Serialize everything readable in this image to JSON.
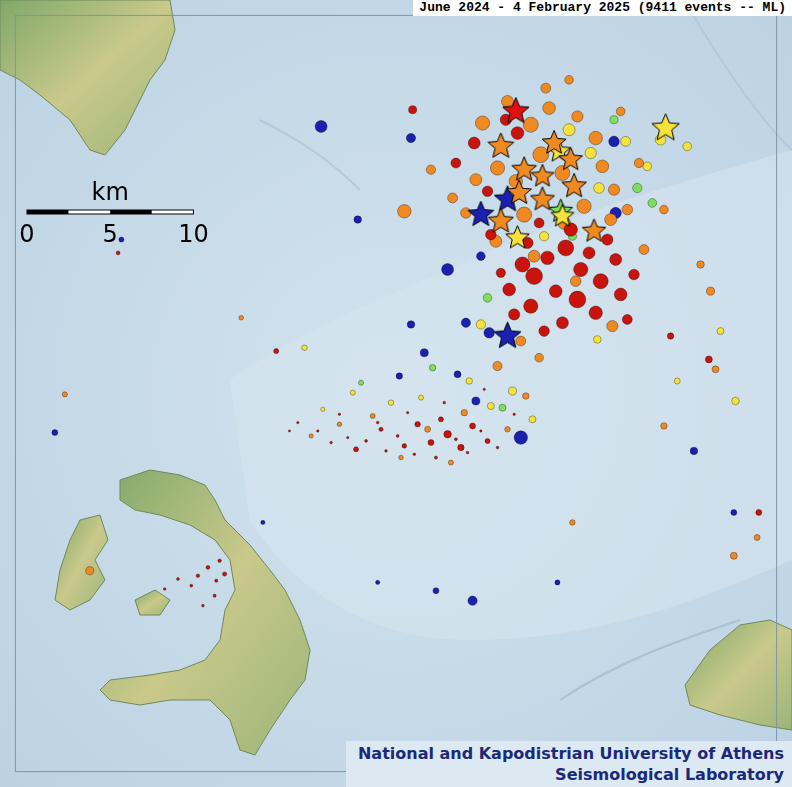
{
  "chart_data": {
    "type": "scatter",
    "title": "June 2024 - 4 February 2025 (9411 events -- ML)",
    "xlim": [
      0,
      45.8
    ],
    "ylim": [
      0,
      45.5
    ],
    "tick_labels": false,
    "grid": false,
    "scale_bar": {
      "label": "km",
      "ticks": [
        0,
        5,
        10
      ]
    },
    "credit": [
      "National and Kapodistrian University of Athens",
      "Seismological Laboratory"
    ],
    "series": [
      {
        "color": "#1a20b0",
        "marker": "circle",
        "points": [
          [
            18.4,
            38.8,
            3.0
          ],
          [
            23.8,
            38.1,
            2.6
          ],
          [
            20.6,
            33.2,
            2.3
          ],
          [
            26.0,
            30.2,
            3.0
          ],
          [
            28.0,
            31.0,
            2.5
          ],
          [
            27.1,
            27.0,
            2.6
          ],
          [
            28.5,
            26.4,
            2.8
          ],
          [
            23.8,
            26.9,
            2.3
          ],
          [
            24.6,
            25.2,
            2.4
          ],
          [
            23.1,
            23.8,
            2.1
          ],
          [
            26.6,
            23.9,
            2.2
          ],
          [
            30.4,
            20.1,
            3.2
          ],
          [
            27.7,
            22.3,
            2.4
          ],
          [
            36.1,
            33.6,
            2.9
          ],
          [
            36.0,
            37.9,
            2.8
          ],
          [
            40.8,
            19.3,
            2.3
          ],
          [
            27.5,
            10.3,
            2.6
          ],
          [
            2.4,
            20.4,
            2.0
          ],
          [
            43.2,
            15.6,
            2.0
          ],
          [
            6.4,
            32.0,
            1.8
          ],
          [
            32.6,
            11.4,
            1.8
          ],
          [
            25.3,
            10.9,
            2.0
          ],
          [
            14.9,
            15.0,
            1.6
          ],
          [
            21.8,
            11.4,
            1.6
          ]
        ]
      },
      {
        "color": "#7ee05a",
        "marker": "circle",
        "points": [
          [
            37.4,
            35.1,
            2.6
          ],
          [
            28.4,
            28.5,
            2.5
          ],
          [
            29.3,
            21.9,
            2.2
          ],
          [
            25.1,
            24.3,
            2.1
          ],
          [
            33.5,
            32.2,
            2.4
          ],
          [
            36.0,
            39.2,
            2.4
          ],
          [
            20.8,
            23.4,
            1.8
          ],
          [
            38.3,
            34.2,
            2.5
          ]
        ]
      },
      {
        "color": "#f5e23a",
        "marker": "circle",
        "points": [
          [
            33.3,
            38.6,
            3.0
          ],
          [
            34.6,
            37.2,
            2.9
          ],
          [
            36.7,
            37.9,
            2.7
          ],
          [
            38.0,
            36.4,
            2.5
          ],
          [
            35.1,
            35.1,
            2.8
          ],
          [
            31.8,
            32.2,
            2.6
          ],
          [
            29.9,
            22.9,
            2.4
          ],
          [
            28.6,
            22.0,
            2.2
          ],
          [
            31.1,
            21.2,
            2.2
          ],
          [
            27.3,
            23.5,
            2.1
          ],
          [
            22.6,
            22.2,
            1.9
          ],
          [
            20.3,
            22.8,
            1.8
          ],
          [
            18.5,
            21.8,
            1.6
          ],
          [
            24.4,
            22.5,
            1.8
          ],
          [
            38.8,
            38.0,
            2.8
          ],
          [
            43.3,
            22.3,
            2.3
          ],
          [
            42.4,
            26.5,
            2.2
          ],
          [
            17.4,
            25.5,
            1.9
          ],
          [
            40.4,
            37.6,
            2.5
          ],
          [
            35.0,
            26.0,
            2.3
          ],
          [
            28.0,
            26.9,
            2.6
          ],
          [
            39.8,
            23.5,
            2.0
          ]
        ]
      },
      {
        "color": "#f08a20",
        "marker": "circle",
        "points": [
          [
            28.1,
            39.0,
            3.3
          ],
          [
            29.6,
            40.3,
            3.0
          ],
          [
            31.0,
            38.9,
            3.4
          ],
          [
            32.1,
            39.9,
            3.1
          ],
          [
            33.8,
            39.4,
            2.9
          ],
          [
            34.9,
            38.1,
            3.2
          ],
          [
            31.6,
            37.1,
            3.5
          ],
          [
            29.0,
            36.3,
            3.3
          ],
          [
            27.7,
            35.6,
            3.0
          ],
          [
            30.1,
            35.5,
            3.2
          ],
          [
            32.9,
            36.0,
            3.4
          ],
          [
            35.3,
            36.4,
            3.1
          ],
          [
            36.0,
            35.0,
            2.9
          ],
          [
            34.2,
            34.0,
            3.3
          ],
          [
            33.0,
            33.0,
            3.1
          ],
          [
            30.6,
            33.5,
            3.4
          ],
          [
            28.9,
            31.9,
            3.0
          ],
          [
            27.1,
            33.6,
            2.8
          ],
          [
            26.3,
            34.5,
            2.7
          ],
          [
            35.8,
            33.2,
            3.0
          ],
          [
            36.8,
            33.8,
            2.8
          ],
          [
            37.5,
            36.6,
            2.6
          ],
          [
            23.4,
            33.7,
            3.2
          ],
          [
            25.0,
            36.2,
            2.6
          ],
          [
            36.4,
            39.7,
            2.5
          ],
          [
            31.9,
            41.1,
            2.7
          ],
          [
            33.3,
            41.6,
            2.5
          ],
          [
            31.2,
            31.0,
            3.0
          ],
          [
            33.7,
            29.5,
            2.8
          ],
          [
            35.9,
            26.8,
            2.9
          ],
          [
            30.4,
            25.9,
            2.7
          ],
          [
            29.0,
            24.4,
            2.6
          ],
          [
            31.5,
            24.9,
            2.5
          ],
          [
            37.8,
            31.4,
            2.7
          ],
          [
            39.0,
            33.8,
            2.5
          ],
          [
            41.2,
            30.5,
            2.3
          ],
          [
            41.8,
            28.9,
            2.4
          ],
          [
            24.8,
            20.6,
            2.0
          ],
          [
            27.0,
            21.6,
            2.1
          ],
          [
            21.5,
            21.4,
            1.8
          ],
          [
            19.5,
            20.9,
            1.7
          ],
          [
            17.8,
            20.2,
            1.6
          ],
          [
            29.6,
            20.6,
            1.9
          ],
          [
            30.7,
            22.6,
            2.1
          ],
          [
            23.2,
            18.9,
            1.7
          ],
          [
            26.2,
            18.6,
            1.8
          ],
          [
            4.5,
            12.1,
            2.4
          ],
          [
            43.2,
            13.0,
            2.2
          ],
          [
            44.6,
            14.1,
            2.0
          ],
          [
            39.0,
            20.8,
            2.1
          ],
          [
            42.1,
            24.2,
            2.2
          ],
          [
            3.0,
            22.7,
            1.8
          ],
          [
            13.6,
            27.3,
            1.7
          ],
          [
            33.5,
            15.0,
            1.9
          ]
        ]
      },
      {
        "color": "#c8140c",
        "marker": "circle",
        "points": [
          [
            30.5,
            30.5,
            3.4
          ],
          [
            31.2,
            29.8,
            3.6
          ],
          [
            32.0,
            30.9,
            3.2
          ],
          [
            33.1,
            31.5,
            3.5
          ],
          [
            34.0,
            30.2,
            3.3
          ],
          [
            35.2,
            29.5,
            3.4
          ],
          [
            36.1,
            30.8,
            3.0
          ],
          [
            33.8,
            28.4,
            3.6
          ],
          [
            32.5,
            28.9,
            3.1
          ],
          [
            31.0,
            28.0,
            3.3
          ],
          [
            30.0,
            27.5,
            2.9
          ],
          [
            34.9,
            27.6,
            3.2
          ],
          [
            36.4,
            28.7,
            3.1
          ],
          [
            37.2,
            29.9,
            2.8
          ],
          [
            32.9,
            27.0,
            3.0
          ],
          [
            31.8,
            26.5,
            2.8
          ],
          [
            29.7,
            29.0,
            3.1
          ],
          [
            30.8,
            31.8,
            2.9
          ],
          [
            33.4,
            32.6,
            3.2
          ],
          [
            35.6,
            32.0,
            2.9
          ],
          [
            34.5,
            31.2,
            3.0
          ],
          [
            36.8,
            27.2,
            2.7
          ],
          [
            29.2,
            30.0,
            2.6
          ],
          [
            31.5,
            33.0,
            2.7
          ],
          [
            28.6,
            32.3,
            2.8
          ],
          [
            27.6,
            37.8,
            3.0
          ],
          [
            29.5,
            39.2,
            2.9
          ],
          [
            26.5,
            36.6,
            2.7
          ],
          [
            30.2,
            38.4,
            3.1
          ],
          [
            28.4,
            34.9,
            2.8
          ],
          [
            26.0,
            20.3,
            2.3
          ],
          [
            25.0,
            19.8,
            2.0
          ],
          [
            26.8,
            19.5,
            2.1
          ],
          [
            24.2,
            20.9,
            1.9
          ],
          [
            27.5,
            20.8,
            2.0
          ],
          [
            25.6,
            21.2,
            1.8
          ],
          [
            23.4,
            19.6,
            1.7
          ],
          [
            22.0,
            20.6,
            1.6
          ],
          [
            28.4,
            19.9,
            1.8
          ],
          [
            11.0,
            11.8,
            1.4
          ],
          [
            11.6,
            12.3,
            1.5
          ],
          [
            12.1,
            11.5,
            1.3
          ],
          [
            12.3,
            12.7,
            1.4
          ],
          [
            10.6,
            11.2,
            1.2
          ],
          [
            9.8,
            11.6,
            1.2
          ],
          [
            9.0,
            11.0,
            1.1
          ],
          [
            12.0,
            10.6,
            1.3
          ],
          [
            11.3,
            10.0,
            1.1
          ],
          [
            12.6,
            11.9,
            1.6
          ],
          [
            23.9,
            39.8,
            2.4
          ],
          [
            41.7,
            24.8,
            2.2
          ],
          [
            44.7,
            15.6,
            2.0
          ],
          [
            15.7,
            25.3,
            1.8
          ],
          [
            20.5,
            19.4,
            1.8
          ],
          [
            39.4,
            26.2,
            2.1
          ],
          [
            6.2,
            31.2,
            1.5
          ],
          [
            17.0,
            21.0,
            1.0
          ],
          [
            18.2,
            20.5,
            1.0
          ],
          [
            19.0,
            19.8,
            1.1
          ],
          [
            20.0,
            20.1,
            1.0
          ],
          [
            21.1,
            19.9,
            1.2
          ],
          [
            22.3,
            19.3,
            1.1
          ],
          [
            23.0,
            20.2,
            1.2
          ],
          [
            24.0,
            19.1,
            1.1
          ],
          [
            25.3,
            18.9,
            1.3
          ],
          [
            26.5,
            20.0,
            1.2
          ],
          [
            27.2,
            19.2,
            1.1
          ],
          [
            28.0,
            20.5,
            1.0
          ],
          [
            29.0,
            19.5,
            1.1
          ],
          [
            30.0,
            21.5,
            1.0
          ],
          [
            19.5,
            21.5,
            1.0
          ],
          [
            21.8,
            21.0,
            1.1
          ],
          [
            23.6,
            21.6,
            1.0
          ],
          [
            25.8,
            22.2,
            1.1
          ],
          [
            28.2,
            23.0,
            1.0
          ],
          [
            16.5,
            20.5,
            0.9
          ]
        ]
      },
      {
        "color": "#1a20b0",
        "marker": "star",
        "points": [
          [
            29.6,
            34.4,
            4.6
          ],
          [
            28.0,
            33.5,
            4.5
          ],
          [
            29.6,
            26.2,
            4.7
          ]
        ]
      },
      {
        "color": "#7ee05a",
        "marker": "star",
        "points": [
          [
            32.8,
            33.7,
            4.1
          ]
        ]
      },
      {
        "color": "#f5e23a",
        "marker": "star",
        "points": [
          [
            39.1,
            38.7,
            4.8
          ],
          [
            30.2,
            32.1,
            4.1
          ],
          [
            32.9,
            33.4,
            4.0
          ],
          [
            32.7,
            37.3,
            4.0
          ]
        ]
      },
      {
        "color": "#f08a20",
        "marker": "star",
        "points": [
          [
            29.2,
            37.6,
            4.5
          ],
          [
            30.6,
            36.2,
            4.3
          ],
          [
            32.4,
            37.8,
            4.2
          ],
          [
            33.4,
            36.8,
            4.1
          ],
          [
            30.3,
            34.8,
            4.3
          ],
          [
            31.7,
            34.4,
            4.2
          ],
          [
            33.6,
            35.2,
            4.3
          ],
          [
            29.2,
            33.1,
            4.4
          ],
          [
            34.8,
            32.5,
            4.1
          ],
          [
            31.7,
            35.8,
            4.0
          ]
        ]
      },
      {
        "color": "#e01010",
        "marker": "star",
        "points": [
          [
            30.1,
            39.7,
            4.6
          ]
        ]
      }
    ]
  }
}
